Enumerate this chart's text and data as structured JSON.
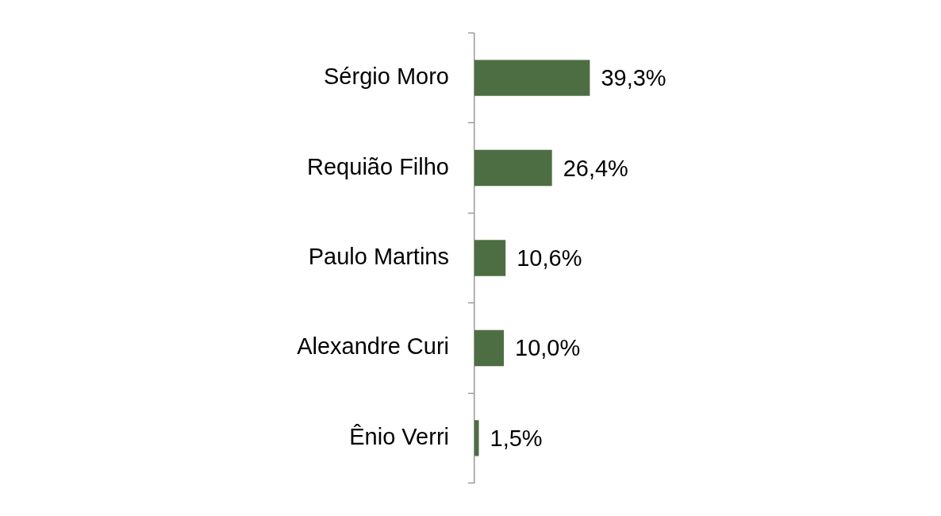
{
  "chart_data": {
    "type": "bar",
    "orientation": "horizontal",
    "categories": [
      "Sérgio Moro",
      "Requião Filho",
      "Paulo Martins",
      "Alexandre Curi",
      "Ênio Verri"
    ],
    "values": [
      39.3,
      26.4,
      10.6,
      10.0,
      1.5
    ],
    "value_labels": [
      "39,3%",
      "26,4%",
      "10,6%",
      "10,0%",
      "1,5%"
    ],
    "color": "#4d6e42",
    "grid": false,
    "legend": false
  }
}
